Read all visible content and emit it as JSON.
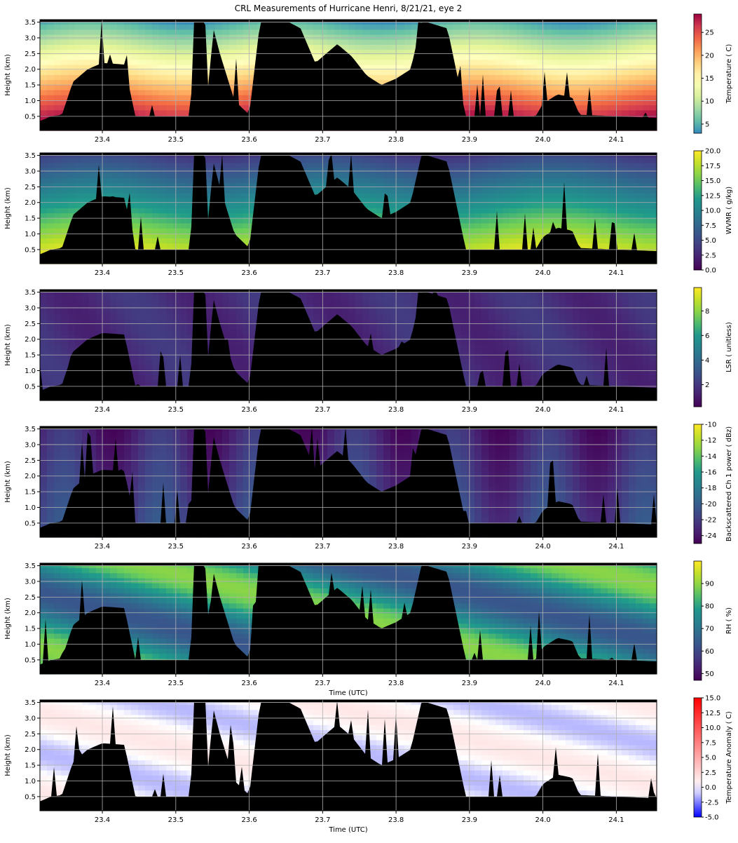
{
  "chart_data": {
    "type": "heatmap",
    "title": "CRL Measurements of Hurricane Henri, 8/21/21, eye 2",
    "x_range": [
      23.315,
      24.155
    ],
    "y_range": [
      0.05,
      3.58
    ],
    "x_ticks": [
      "23.4",
      "23.5",
      "23.6",
      "23.7",
      "23.8",
      "23.9",
      "24.0",
      "24.1"
    ],
    "y_ticks": [
      "0.5",
      "1.0",
      "1.5",
      "2.0",
      "2.5",
      "3.0",
      "3.5"
    ],
    "y_label": "Height (km)",
    "grid": true,
    "panels": [
      {
        "id": "temperature",
        "colorbar_label": "Temperature ( C)",
        "colormap": "Spectral_r",
        "colorbar_ticks": [
          "5",
          "10",
          "15",
          "20",
          "25"
        ],
        "colorbar_range": [
          3,
          29
        ],
        "xlabel": ""
      },
      {
        "id": "wvmr",
        "colorbar_label": "WVMR ( g/kg)",
        "colormap": "viridis",
        "colorbar_ticks": [
          "0.0",
          "2.5",
          "5.0",
          "7.5",
          "10.0",
          "12.5",
          "15.0",
          "17.5",
          "20.0"
        ],
        "colorbar_range": [
          0,
          20
        ],
        "xlabel": ""
      },
      {
        "id": "lsr",
        "colorbar_label": "LSR ( unitless)",
        "colormap": "viridis",
        "colorbar_ticks": [
          "2",
          "4",
          "6",
          "8"
        ],
        "colorbar_range": [
          0.2,
          9.9
        ],
        "xlabel": ""
      },
      {
        "id": "backscatter",
        "colorbar_label": "Backscattered Ch 1 power ( dBz)",
        "colormap": "viridis",
        "colorbar_ticks": [
          "-24",
          "-22",
          "-20",
          "-18",
          "-16",
          "-14",
          "-12",
          "-10"
        ],
        "colorbar_range": [
          -25,
          -10
        ],
        "xlabel": ""
      },
      {
        "id": "rh",
        "colorbar_label": "RH ( %)",
        "colormap": "viridis",
        "colorbar_ticks": [
          "50",
          "60",
          "70",
          "80",
          "90"
        ],
        "colorbar_range": [
          47,
          100
        ],
        "xlabel": "Time (UTC)"
      },
      {
        "id": "anomaly",
        "colorbar_label": "Temperature Anomaly ( C)",
        "colormap": "bwr",
        "colorbar_ticks": [
          "-5.0",
          "-2.5",
          "0.0",
          "2.5",
          "5.0",
          "7.5",
          "10.0",
          "12.5",
          "15.0"
        ],
        "colorbar_range": [
          -5,
          15
        ],
        "xlabel": "Time (UTC)"
      }
    ],
    "masked_color": "#000000"
  }
}
